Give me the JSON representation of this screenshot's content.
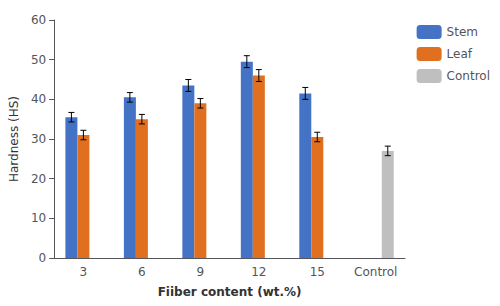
{
  "chart_data": {
    "type": "bar",
    "categories": [
      "3",
      "6",
      "9",
      "12",
      "15",
      "Control"
    ],
    "series": [
      {
        "name": "Stem",
        "color": "#4472C4",
        "values": [
          35.5,
          40.5,
          43.5,
          49.5,
          41.5,
          null
        ],
        "errors": [
          1.2,
          1.2,
          1.5,
          1.5,
          1.5,
          null
        ]
      },
      {
        "name": "Leaf",
        "color": "#E07020",
        "values": [
          31.0,
          35.0,
          39.0,
          46.0,
          30.5,
          null
        ],
        "errors": [
          1.2,
          1.2,
          1.2,
          1.5,
          1.2,
          null
        ]
      },
      {
        "name": "Control",
        "color": "#BFBFBF",
        "values": [
          null,
          null,
          null,
          null,
          null,
          27.0
        ],
        "errors": [
          null,
          null,
          null,
          null,
          null,
          1.2
        ]
      }
    ],
    "xlabel": "Fiiber content (wt.%)",
    "ylabel": "Hardness (HS)",
    "ylim": [
      0,
      60
    ],
    "yticks": [
      0,
      10,
      20,
      30,
      40,
      50,
      60
    ],
    "grid": false,
    "legend": "right"
  }
}
